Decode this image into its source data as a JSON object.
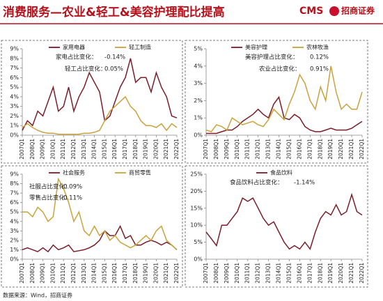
{
  "header": {
    "title": "消费服务—农业&轻工&美容护理配比提高",
    "logo": "CMS",
    "logo_name": "招商证券"
  },
  "footer": {
    "source": "数据来源：Wind，招商证券"
  },
  "chart_data": [
    {
      "type": "line",
      "categories": [
        "2007Q1",
        null,
        "2008Q1",
        null,
        "2009Q1",
        null,
        "2010Q1",
        null,
        "2011Q1",
        null,
        "2012Q1",
        null,
        "2013Q1",
        null,
        "2014Q1",
        null,
        "2015Q1",
        null,
        "2016Q1",
        null,
        "2017Q1",
        null,
        "2018Q1",
        null,
        "2019Q1",
        null,
        "2020Q1",
        null,
        "2021Q1",
        null,
        "2022Q1"
      ],
      "series": [
        {
          "name": "家用电器",
          "color": "#7b1c2a",
          "values": [
            0.5,
            1.5,
            1.0,
            2.5,
            2.0,
            3.5,
            5.0,
            2.5,
            3.0,
            5.0,
            2.5,
            4.0,
            5.0,
            6.5,
            5.5,
            4.5,
            1.5,
            2.0,
            3.5,
            5.0,
            6.0,
            8.0,
            5.5,
            6.0,
            6.0,
            4.5,
            6.5,
            5.0,
            4.0,
            2.0,
            1.8
          ]
        },
        {
          "name": "轻工制造",
          "color": "#c9a23c",
          "values": [
            0.8,
            1.2,
            0.8,
            0.5,
            0.3,
            0.2,
            0.2,
            0.1,
            0.1,
            0.1,
            0.1,
            0.1,
            0.2,
            0.2,
            0.3,
            0.5,
            1.5,
            2.5,
            3.0,
            3.5,
            4.0,
            3.0,
            2.5,
            1.5,
            1.0,
            1.0,
            0.8,
            1.2,
            0.5,
            1.2,
            0.8
          ]
        }
      ],
      "ylim": [
        0,
        9
      ],
      "yticks": [
        {
          "value": 0,
          "label": "0%"
        },
        {
          "value": 1,
          "label": "1%"
        },
        {
          "value": 2,
          "label": "2%"
        },
        {
          "value": 3,
          "label": "3%"
        },
        {
          "value": 4,
          "label": "4%"
        },
        {
          "value": 5,
          "label": "5%"
        },
        {
          "value": 6,
          "label": "6%"
        },
        {
          "value": 7,
          "label": "7%"
        },
        {
          "value": 8,
          "label": "8%"
        },
        {
          "value": 9,
          "label": "9%"
        }
      ],
      "annotations": [
        "家电占比变化：",
        "-0.14%",
        "轻工占比变化：",
        "0.05%"
      ]
    },
    {
      "type": "line",
      "categories": [
        "2007Q1",
        null,
        "2008Q1",
        null,
        "2009Q1",
        null,
        "2010Q1",
        null,
        "2011Q1",
        null,
        "2012Q1",
        null,
        "2013Q1",
        null,
        "2014Q1",
        null,
        "2015Q1",
        null,
        "2016Q1",
        null,
        "2017Q1",
        null,
        "2018Q1",
        null,
        "2019Q1",
        null,
        "2020Q1",
        null,
        "2021Q1",
        null,
        "2022Q1"
      ],
      "series": [
        {
          "name": "美容护理",
          "color": "#7b1c2a",
          "values": [
            0.1,
            0.1,
            0.1,
            0.2,
            0.3,
            0.3,
            0.5,
            0.8,
            1.0,
            1.2,
            1.5,
            1.2,
            1.0,
            1.8,
            2.2,
            1.0,
            0.9,
            1.2,
            1.0,
            0.5,
            0.3,
            0.2,
            0.2,
            0.3,
            0.4,
            0.3,
            0.3,
            0.3,
            0.4,
            0.6,
            0.8
          ]
        },
        {
          "name": "农林牧渔",
          "color": "#c9a23c",
          "values": [
            0.3,
            0.2,
            0.6,
            0.5,
            0.3,
            1.0,
            0.8,
            0.6,
            0.7,
            0.8,
            0.6,
            0.5,
            0.9,
            1.5,
            1.2,
            0.9,
            1.8,
            2.5,
            3.5,
            3.0,
            2.0,
            1.5,
            2.8,
            2.0,
            4.0,
            2.5,
            1.5,
            1.8,
            1.5,
            1.5,
            2.5
          ]
        }
      ],
      "ylim": [
        0,
        5
      ],
      "yticks": [
        {
          "value": 0,
          "label": "0%"
        },
        {
          "value": 1,
          "label": "1%"
        },
        {
          "value": 2,
          "label": "2%"
        },
        {
          "value": 3,
          "label": "3%"
        },
        {
          "value": 4,
          "label": "4%"
        },
        {
          "value": 5,
          "label": "5%"
        }
      ],
      "annotations": [
        "美容护理占比变化：",
        "0.12%",
        "农业占比变化：",
        "0.91%"
      ]
    },
    {
      "type": "line",
      "categories": [
        "2007Q1",
        null,
        "2008Q1",
        null,
        "2009Q1",
        null,
        "2010Q1",
        null,
        "2011Q1",
        null,
        "2012Q1",
        null,
        "2013Q1",
        null,
        "2014Q1",
        null,
        "2015Q1",
        null,
        "2016Q1",
        null,
        "2017Q1",
        null,
        "2018Q1",
        null,
        "2019Q1",
        null,
        "2020Q1",
        null,
        "2021Q1",
        null,
        "2022Q1"
      ],
      "series": [
        {
          "name": "社会服务",
          "color": "#7b1c2a",
          "values": [
            1.0,
            1.2,
            1.0,
            0.8,
            1.2,
            0.8,
            1.5,
            1.0,
            1.2,
            1.5,
            0.8,
            0.9,
            1.0,
            1.2,
            1.5,
            2.0,
            3.0,
            2.5,
            2.5,
            3.5,
            2.2,
            2.5,
            1.5,
            1.5,
            1.8,
            2.0,
            1.8,
            1.5,
            1.8,
            1.5,
            1.0
          ]
        },
        {
          "name": "商贸零售",
          "color": "#c9a23c",
          "values": [
            5.0,
            5.0,
            4.5,
            5.5,
            5.0,
            4.0,
            4.5,
            8.5,
            7.5,
            6.0,
            4.0,
            5.0,
            3.0,
            2.5,
            3.5,
            2.5,
            3.0,
            2.0,
            2.5,
            1.8,
            1.5,
            1.2,
            1.5,
            2.0,
            2.5,
            2.0,
            3.0,
            3.5,
            2.0,
            1.5,
            1.0
          ]
        }
      ],
      "ylim": [
        0,
        9
      ],
      "yticks": [
        {
          "value": 0,
          "label": "0%"
        },
        {
          "value": 1,
          "label": "1%"
        },
        {
          "value": 2,
          "label": "2%"
        },
        {
          "value": 3,
          "label": "3%"
        },
        {
          "value": 4,
          "label": "4%"
        },
        {
          "value": 5,
          "label": "5%"
        },
        {
          "value": 6,
          "label": "6%"
        },
        {
          "value": 7,
          "label": "7%"
        },
        {
          "value": 8,
          "label": "8%"
        },
        {
          "value": 9,
          "label": "9%"
        }
      ],
      "annotations": [
        "社服占比变化：",
        "-0.09%",
        "零售占比变化：",
        "-0.11%"
      ]
    },
    {
      "type": "line",
      "categories": [
        "2007Q1",
        null,
        "2008Q1",
        null,
        "2009Q1",
        null,
        "2010Q1",
        null,
        "2011Q1",
        null,
        "2012Q1",
        null,
        "2013Q1",
        null,
        "2014Q1",
        null,
        "2015Q1",
        null,
        "2016Q1",
        null,
        "2017Q1",
        null,
        "2018Q1",
        null,
        "2019Q1",
        null,
        "2020Q1",
        null,
        "2021Q1",
        null,
        "2022Q1"
      ],
      "series": [
        {
          "name": "食品饮料",
          "color": "#7b1c2a",
          "values": [
            8,
            6,
            4,
            10,
            10,
            12,
            14,
            18,
            17,
            18,
            15,
            12,
            10,
            11,
            8,
            5,
            3,
            4,
            3,
            5,
            3,
            8,
            12,
            14,
            13,
            16,
            13,
            14,
            19,
            14,
            13
          ]
        }
      ],
      "ylim": [
        0,
        25
      ],
      "yticks": [
        {
          "value": 0,
          "label": "0%"
        },
        {
          "value": 5,
          "label": "5%"
        },
        {
          "value": 10,
          "label": "10%"
        },
        {
          "value": 15,
          "label": "15%"
        },
        {
          "value": 20,
          "label": "20%"
        },
        {
          "value": 25,
          "label": "25%"
        }
      ],
      "annotations": [
        "食品饮料占比变化：",
        "-1.14%"
      ]
    }
  ]
}
